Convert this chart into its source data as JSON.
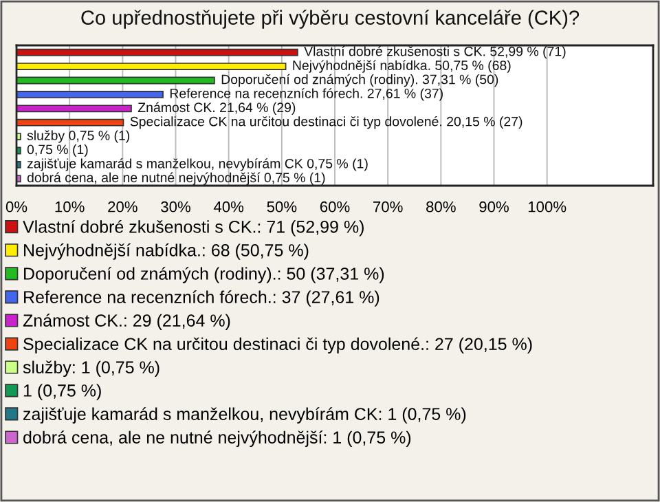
{
  "chart_data": {
    "type": "bar",
    "orientation": "horizontal",
    "title": "Co upřednostňujete při výběru cestovní kanceláře (CK)?",
    "categories": [
      null,
      null,
      null,
      null,
      null,
      null,
      null,
      null,
      null,
      null
    ],
    "xlim": [
      0,
      120
    ],
    "xticks": [
      {
        "value": 0,
        "label": "0%"
      },
      {
        "value": 10,
        "label": "10%"
      },
      {
        "value": 20,
        "label": "20%"
      },
      {
        "value": 30,
        "label": "30%"
      },
      {
        "value": 40,
        "label": "40%"
      },
      {
        "value": 50,
        "label": "50%"
      },
      {
        "value": 60,
        "label": "60%"
      },
      {
        "value": 70,
        "label": "70%"
      },
      {
        "value": 80,
        "label": "80%"
      },
      {
        "value": 90,
        "label": "90%"
      },
      {
        "value": 100,
        "label": "100%"
      }
    ],
    "tick_labels": "x",
    "grid": "x",
    "legend": "bottom",
    "series": [
      {
        "name": "Vlastní dobré zkušenosti s CK.: 71 (52,99 %)",
        "color": "#cc1111",
        "values": [
          52.99,
          null,
          null,
          null,
          null,
          null,
          null,
          null,
          null,
          null
        ],
        "value_labels": [
          "Vlastní dobré zkušenosti s CK. 52,99 % (71)",
          null,
          null,
          null,
          null,
          null,
          null,
          null,
          null,
          null
        ]
      },
      {
        "name": "Nejvýhodnější nabídka.: 68 (50,75 %)",
        "color": "#ffee00",
        "values": [
          null,
          50.75,
          null,
          null,
          null,
          null,
          null,
          null,
          null,
          null
        ],
        "value_labels": [
          null,
          "Nejvýhodnější nabídka. 50,75 % (68)",
          null,
          null,
          null,
          null,
          null,
          null,
          null,
          null
        ]
      },
      {
        "name": "Doporučení od známých (rodiny).: 50 (37,31 %)",
        "color": "#22bb22",
        "values": [
          null,
          null,
          37.31,
          null,
          null,
          null,
          null,
          null,
          null,
          null
        ],
        "value_labels": [
          null,
          null,
          "Doporučení od známých (rodiny). 37,31 % (50)",
          null,
          null,
          null,
          null,
          null,
          null,
          null
        ]
      },
      {
        "name": "Reference na recenzních fórech.: 37 (27,61 %)",
        "color": "#4466ee",
        "values": [
          null,
          null,
          null,
          27.61,
          null,
          null,
          null,
          null,
          null,
          null
        ],
        "value_labels": [
          null,
          null,
          null,
          "Reference na recenzních fórech. 27,61 % (37)",
          null,
          null,
          null,
          null,
          null,
          null
        ]
      },
      {
        "name": "Známost CK.: 29 (21,64 %)",
        "color": "#cc22cc",
        "values": [
          null,
          null,
          null,
          null,
          21.64,
          null,
          null,
          null,
          null,
          null
        ],
        "value_labels": [
          null,
          null,
          null,
          null,
          "Známost CK. 21,64 % (29)",
          null,
          null,
          null,
          null,
          null
        ]
      },
      {
        "name": "Specializace CK na určitou destinaci či typ dovolené.: 27 (20,15 %)",
        "color": "#ee4411",
        "values": [
          null,
          null,
          null,
          null,
          null,
          20.15,
          null,
          null,
          null,
          null
        ],
        "value_labels": [
          null,
          null,
          null,
          null,
          null,
          "Specializace CK na určitou destinaci či typ dovolené. 20,15 % (27)",
          null,
          null,
          null,
          null
        ]
      },
      {
        "name": "služby: 1 (0,75 %)",
        "color": "#ccff88",
        "values": [
          null,
          null,
          null,
          null,
          null,
          null,
          0.75,
          null,
          null,
          null
        ],
        "value_labels": [
          null,
          null,
          null,
          null,
          null,
          null,
          "služby 0,75 % (1)",
          null,
          null,
          null
        ]
      },
      {
        "name": "1 (0,75 %)",
        "color": "#119955",
        "values": [
          null,
          null,
          null,
          null,
          null,
          null,
          null,
          0.75,
          null,
          null
        ],
        "value_labels": [
          null,
          null,
          null,
          null,
          null,
          null,
          null,
          "0,75 % (1)",
          null,
          null
        ]
      },
      {
        "name": "zajišťuje kamarád s manželkou, nevybírám CK: 1 (0,75 %)",
        "color": "#227788",
        "values": [
          null,
          null,
          null,
          null,
          null,
          null,
          null,
          null,
          0.75,
          null
        ],
        "value_labels": [
          null,
          null,
          null,
          null,
          null,
          null,
          null,
          null,
          "zajišťuje kamarád s manželkou, nevybírám CK 0,75 % (1)",
          null
        ]
      },
      {
        "name": "dobrá cena, ale ne nutné nejvýhodnější: 1 (0,75 %)",
        "color": "#cc66cc",
        "values": [
          null,
          null,
          null,
          null,
          null,
          null,
          null,
          null,
          null,
          0.75
        ],
        "value_labels": [
          null,
          null,
          null,
          null,
          null,
          null,
          null,
          null,
          null,
          "dobrá cena, ale ne nutné nejvýhodnější 0,75 % (1)"
        ]
      }
    ]
  }
}
